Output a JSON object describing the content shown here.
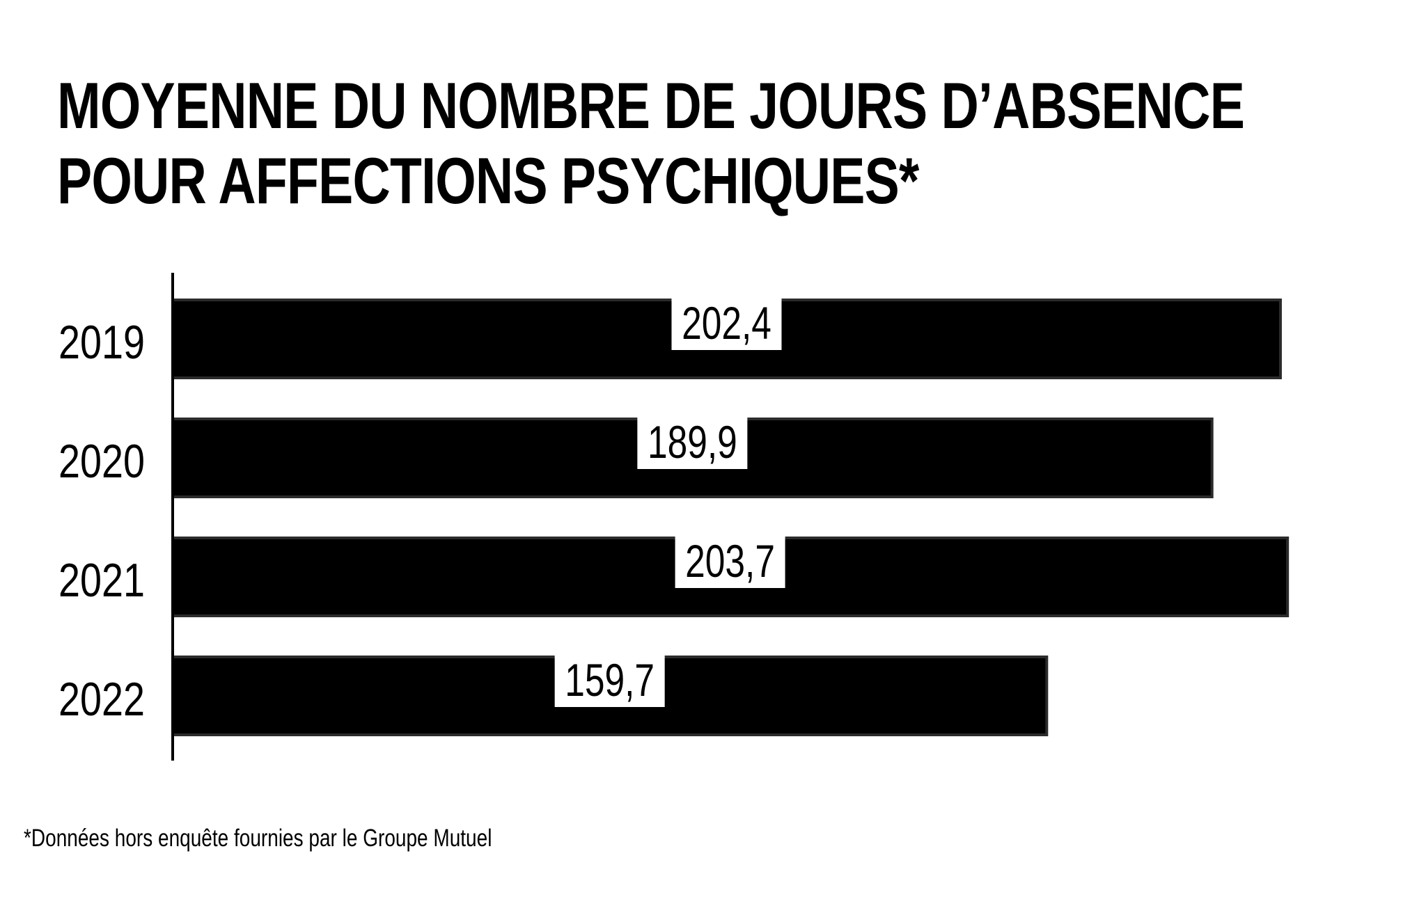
{
  "chart_data": {
    "type": "bar",
    "orientation": "horizontal",
    "title_lines": [
      "MOYENNE DU NOMBRE DE JOURS D’ABSENCE",
      "POUR AFFECTIONS PSYCHIQUES*"
    ],
    "categories": [
      "2019",
      "2020",
      "2021",
      "2022"
    ],
    "values": [
      202.4,
      189.9,
      203.7,
      159.7
    ],
    "value_labels": [
      "202,4",
      "189,9",
      "203,7",
      "159,7"
    ],
    "xlim": [
      0,
      215
    ],
    "grid": false,
    "legend": "none",
    "bar_color": "#000000",
    "label_background": "#ffffff"
  },
  "footnote": "*Données hors enquête fournies par le Groupe Mutuel"
}
